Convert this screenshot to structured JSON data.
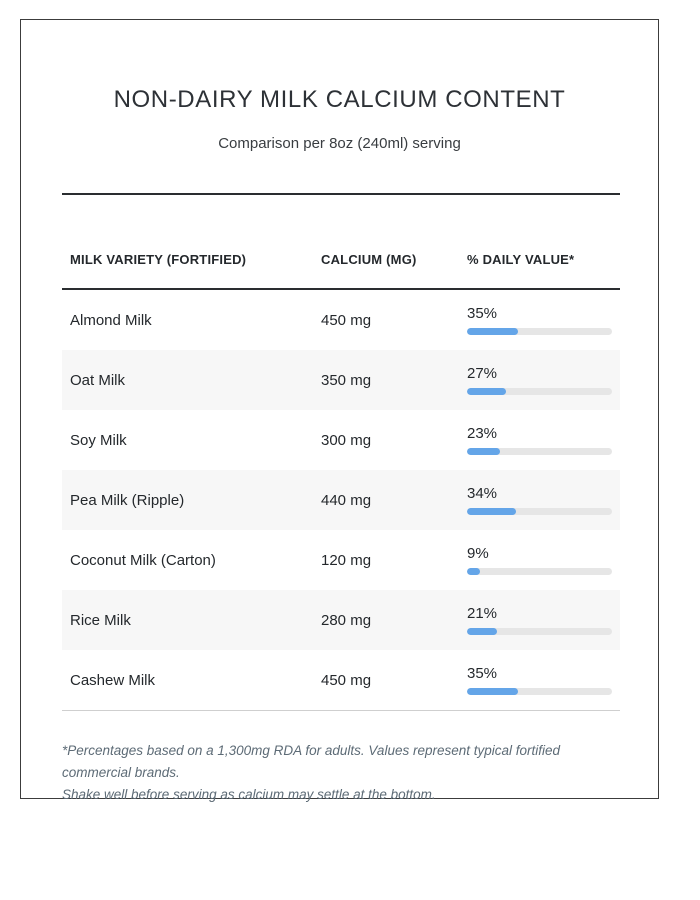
{
  "page": {
    "title": "NON-DAIRY MILK CALCIUM CONTENT",
    "subtitle": "Comparison per 8oz (240ml) serving"
  },
  "table": {
    "columns": [
      "MILK VARIETY (FORTIFIED)",
      "CALCIUM (MG)",
      "% DAILY VALUE*"
    ],
    "rows": [
      {
        "variety": "Almond Milk",
        "calcium": "450 mg",
        "daily_value_label": "35%",
        "daily_value_pct": 35
      },
      {
        "variety": "Oat Milk",
        "calcium": "350 mg",
        "daily_value_label": "27%",
        "daily_value_pct": 27
      },
      {
        "variety": "Soy Milk",
        "calcium": "300 mg",
        "daily_value_label": "23%",
        "daily_value_pct": 23
      },
      {
        "variety": "Pea Milk (Ripple)",
        "calcium": "440 mg",
        "daily_value_label": "34%",
        "daily_value_pct": 34
      },
      {
        "variety": "Coconut Milk (Carton)",
        "calcium": "120 mg",
        "daily_value_label": "9%",
        "daily_value_pct": 9
      },
      {
        "variety": "Rice Milk",
        "calcium": "280 mg",
        "daily_value_label": "21%",
        "daily_value_pct": 21
      },
      {
        "variety": "Cashew Milk",
        "calcium": "450 mg",
        "daily_value_label": "35%",
        "daily_value_pct": 35
      }
    ]
  },
  "footnote": {
    "line1": "*Percentages based on a 1,300mg RDA for adults. Values represent typical fortified commercial brands.",
    "line2": "Shake well before serving as calcium may settle at the bottom."
  },
  "colors": {
    "bar_fill": "#64a5e8",
    "bar_track": "#e6e6e6",
    "row_alt": "#f7f7f7",
    "border_dark": "#2a2d30"
  },
  "chart_data": {
    "type": "table",
    "title": "NON-DAIRY MILK CALCIUM CONTENT",
    "subtitle": "Comparison per 8oz (240ml) serving",
    "categories": [
      "Almond Milk",
      "Oat Milk",
      "Soy Milk",
      "Pea Milk (Ripple)",
      "Coconut Milk (Carton)",
      "Rice Milk",
      "Cashew Milk"
    ],
    "series": [
      {
        "name": "Calcium (mg)",
        "values": [
          450,
          350,
          300,
          440,
          120,
          280,
          450
        ]
      },
      {
        "name": "% Daily Value",
        "values": [
          35,
          27,
          23,
          34,
          9,
          21,
          35
        ]
      }
    ],
    "bar_scale": {
      "min": 0,
      "max": 100,
      "unit": "%"
    }
  }
}
